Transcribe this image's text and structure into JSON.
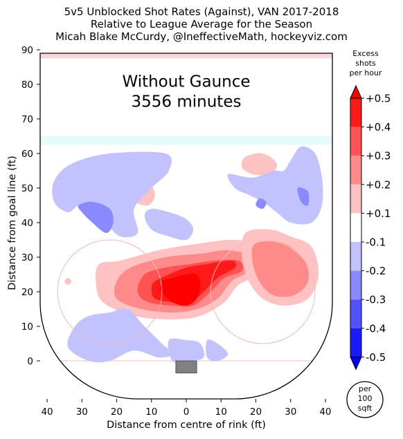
{
  "chart_data": {
    "type": "heatmap",
    "title": [
      "5v5 Unblocked Shot Rates (Against), VAN 2017-2018",
      "Relative to League Average for the Season",
      "Micah Blake McCurdy, @IneffectiveMath, hockeyviz.com"
    ],
    "annotation": [
      "Without Gaunce",
      "3556 minutes"
    ],
    "xlabel": "Distance from centre of rink (ft)",
    "ylabel": "Distance from goal line (ft)",
    "xlim": [
      42,
      -42
    ],
    "ylim": [
      -11,
      90
    ],
    "x_ticks": [
      40,
      30,
      20,
      10,
      0,
      10,
      20,
      30,
      40
    ],
    "x_tick_values": [
      40,
      30,
      20,
      10,
      0,
      -10,
      -20,
      -30,
      -40
    ],
    "y_ticks": [
      0,
      10,
      20,
      30,
      40,
      50,
      60,
      70,
      80,
      90
    ],
    "colorbar": {
      "label": [
        "Excess",
        "shots",
        "per hour"
      ],
      "ticks": [
        "+0.5",
        "+0.4",
        "+0.3",
        "+0.2",
        "+0.1",
        "-0.1",
        "-0.2",
        "-0.3",
        "-0.4",
        "-0.5"
      ],
      "tick_values": [
        0.5,
        0.4,
        0.3,
        0.2,
        0.1,
        -0.1,
        -0.2,
        -0.3,
        -0.4,
        -0.5
      ],
      "bins": [
        {
          "from": 0.4,
          "to": 0.5,
          "color": "#ff1a1a"
        },
        {
          "from": 0.3,
          "to": 0.4,
          "color": "#ff5252"
        },
        {
          "from": 0.2,
          "to": 0.3,
          "color": "#ff8a8a"
        },
        {
          "from": 0.1,
          "to": 0.2,
          "color": "#ffc2c2"
        },
        {
          "from": -0.1,
          "to": 0.1,
          "color": "#ffffff"
        },
        {
          "from": -0.2,
          "to": -0.1,
          "color": "#c2c2ff"
        },
        {
          "from": -0.3,
          "to": -0.2,
          "color": "#8a8aff"
        },
        {
          "from": -0.4,
          "to": -0.3,
          "color": "#5252ff"
        },
        {
          "from": -0.5,
          "to": -0.4,
          "color": "#1a1aff"
        }
      ],
      "extend_max_color": "#ff0000",
      "extend_min_color": "#0000ff"
    },
    "unit_badge": [
      "per",
      "100",
      "sqft"
    ],
    "regions": [
      {
        "name": "slot-hotspot",
        "level": 0.1,
        "points": [
          [
            19,
            29
          ],
          [
            8,
            32
          ],
          [
            -4,
            34
          ],
          [
            -13,
            35
          ],
          [
            -21,
            34
          ],
          [
            -24,
            30
          ],
          [
            -21,
            25
          ],
          [
            -15,
            22
          ],
          [
            -11,
            17
          ],
          [
            -4,
            13
          ],
          [
            4,
            12
          ],
          [
            15,
            13
          ],
          [
            24,
            17
          ],
          [
            26,
            23
          ],
          [
            25,
            28
          ]
        ]
      },
      {
        "name": "slot-hotspot",
        "level": 0.2,
        "points": [
          [
            16,
            27
          ],
          [
            6,
            30
          ],
          [
            -4,
            31
          ],
          [
            -12,
            32
          ],
          [
            -19,
            30
          ],
          [
            -18,
            26
          ],
          [
            -13,
            23
          ],
          [
            -9,
            18
          ],
          [
            -3,
            15
          ],
          [
            4,
            14
          ],
          [
            13,
            15
          ],
          [
            20,
            18
          ],
          [
            20,
            23
          ]
        ]
      },
      {
        "name": "slot-hotspot",
        "level": 0.3,
        "points": [
          [
            12,
            25
          ],
          [
            6,
            27
          ],
          [
            -1,
            28
          ],
          [
            -8,
            29
          ],
          [
            -15,
            29
          ],
          [
            -16,
            26
          ],
          [
            -11,
            24
          ],
          [
            -7,
            20
          ],
          [
            -2,
            16
          ],
          [
            4,
            16
          ],
          [
            11,
            17
          ],
          [
            14,
            20
          ]
        ]
      },
      {
        "name": "slot-hotspot",
        "level": 0.4,
        "points": [
          [
            9,
            23
          ],
          [
            5,
            25
          ],
          [
            0,
            27
          ],
          [
            -6,
            28
          ],
          [
            -13,
            29
          ],
          [
            -14,
            27
          ],
          [
            -9,
            24
          ],
          [
            -5,
            20
          ],
          [
            -1,
            17
          ],
          [
            4,
            17
          ],
          [
            9,
            18
          ],
          [
            10,
            21
          ]
        ]
      },
      {
        "name": "slot-core",
        "level": 0.5,
        "points": [
          [
            7,
            23
          ],
          [
            4,
            24
          ],
          [
            0,
            25
          ],
          [
            -3,
            25
          ],
          [
            -4,
            22
          ],
          [
            -3,
            18
          ],
          [
            0,
            16
          ],
          [
            4,
            17
          ],
          [
            7,
            20
          ]
        ]
      },
      {
        "name": "right-wing-hotspot",
        "level": 0.1,
        "points": [
          [
            -17,
            37
          ],
          [
            -24,
            38
          ],
          [
            -30,
            36
          ],
          [
            -36,
            33
          ],
          [
            -38,
            25
          ],
          [
            -35,
            18
          ],
          [
            -28,
            16
          ],
          [
            -22,
            18
          ],
          [
            -18,
            23
          ],
          [
            -16,
            30
          ]
        ]
      },
      {
        "name": "right-wing-hotspot",
        "level": 0.2,
        "points": [
          [
            -20,
            34
          ],
          [
            -28,
            34
          ],
          [
            -34,
            29
          ],
          [
            -35,
            23
          ],
          [
            -31,
            19
          ],
          [
            -25,
            19
          ],
          [
            -21,
            23
          ],
          [
            -19,
            29
          ]
        ]
      },
      {
        "name": "upper-right-blob",
        "level": 0.1,
        "points": [
          [
            -17,
            59
          ],
          [
            -22,
            60
          ],
          [
            -26,
            57
          ],
          [
            -24,
            54
          ],
          [
            -19,
            54
          ],
          [
            -16,
            56
          ]
        ]
      },
      {
        "name": "upper-left-blob",
        "level": 0.1,
        "points": [
          [
            29,
            56
          ],
          [
            27,
            57
          ],
          [
            25,
            55
          ],
          [
            27,
            53
          ],
          [
            30,
            54
          ]
        ]
      },
      {
        "name": "mid-blob",
        "level": 0.1,
        "points": [
          [
            15,
            51
          ],
          [
            11,
            52
          ],
          [
            9,
            48
          ],
          [
            11,
            45
          ],
          [
            15,
            46
          ],
          [
            17,
            48
          ]
        ]
      },
      {
        "name": "circle-dot",
        "level": 0.1,
        "points": [
          [
            34,
            24
          ],
          [
            33,
            23
          ],
          [
            34,
            22
          ],
          [
            35,
            23
          ]
        ]
      },
      {
        "name": "circle-dot",
        "level": 0.1,
        "points": [
          [
            22,
            21
          ],
          [
            21,
            20
          ],
          [
            22,
            19
          ],
          [
            23,
            20
          ]
        ]
      },
      {
        "name": "circle-dot",
        "level": 0.1,
        "points": [
          [
            -22,
            21
          ],
          [
            -23,
            20
          ],
          [
            -22,
            19
          ],
          [
            -21,
            20
          ]
        ]
      },
      {
        "name": "upper-left-cold",
        "level": -0.1,
        "points": [
          [
            38,
            52
          ],
          [
            33,
            57
          ],
          [
            22,
            60
          ],
          [
            6,
            60
          ],
          [
            5,
            55
          ],
          [
            10,
            50
          ],
          [
            15,
            44
          ],
          [
            14,
            37
          ],
          [
            19,
            36
          ],
          [
            23,
            40
          ],
          [
            27,
            45
          ],
          [
            31,
            45
          ],
          [
            34,
            43
          ],
          [
            38,
            46
          ]
        ]
      },
      {
        "name": "upper-left-cold",
        "level": -0.2,
        "points": [
          [
            31,
            45
          ],
          [
            30,
            43
          ],
          [
            27,
            40
          ],
          [
            23,
            37
          ],
          [
            21,
            40
          ],
          [
            22,
            44
          ],
          [
            27,
            46
          ]
        ]
      },
      {
        "name": "center-cold",
        "level": -0.1,
        "points": [
          [
            12,
            42
          ],
          [
            10,
            44
          ],
          [
            5,
            43
          ],
          [
            0,
            41
          ],
          [
            -2,
            38
          ],
          [
            0,
            35
          ],
          [
            5,
            36
          ],
          [
            10,
            38
          ]
        ]
      },
      {
        "name": "upper-right-cold",
        "level": -0.1,
        "points": [
          [
            -12,
            54
          ],
          [
            -14,
            50
          ],
          [
            -18,
            48
          ],
          [
            -22,
            46
          ],
          [
            -26,
            43
          ],
          [
            -30,
            40
          ],
          [
            -36,
            40
          ],
          [
            -39,
            45
          ],
          [
            -39,
            53
          ],
          [
            -37,
            60
          ],
          [
            -33,
            62
          ],
          [
            -30,
            58
          ],
          [
            -28,
            55
          ],
          [
            -25,
            55
          ],
          [
            -19,
            53
          ]
        ]
      },
      {
        "name": "upper-right-cold",
        "level": -0.2,
        "points": [
          [
            -32,
            50
          ],
          [
            -33,
            46
          ],
          [
            -35,
            45
          ],
          [
            -35,
            49
          ]
        ]
      },
      {
        "name": "upper-right-cold",
        "level": -0.2,
        "points": [
          [
            -20,
            45
          ],
          [
            -22,
            44
          ],
          [
            -23,
            46
          ],
          [
            -21,
            47
          ]
        ]
      },
      {
        "name": "lower-left-cold",
        "level": -0.1,
        "points": [
          [
            28,
            13
          ],
          [
            22,
            14
          ],
          [
            17,
            15
          ],
          [
            12,
            10
          ],
          [
            7,
            5
          ],
          [
            4,
            2
          ],
          [
            8,
            1
          ],
          [
            15,
            3
          ],
          [
            22,
            0
          ],
          [
            28,
            0
          ],
          [
            34,
            4
          ],
          [
            32,
            10
          ]
        ]
      },
      {
        "name": "crease-cold",
        "level": -0.1,
        "points": [
          [
            5,
            6
          ],
          [
            0,
            6
          ],
          [
            -4,
            5
          ],
          [
            -5,
            1
          ],
          [
            -1,
            0
          ],
          [
            4,
            0
          ]
        ]
      },
      {
        "name": "right-low-cold",
        "level": -0.1,
        "points": [
          [
            -6,
            6
          ],
          [
            -9,
            5
          ],
          [
            -12,
            2
          ],
          [
            -9,
            0
          ],
          [
            -6,
            1
          ]
        ]
      }
    ]
  }
}
